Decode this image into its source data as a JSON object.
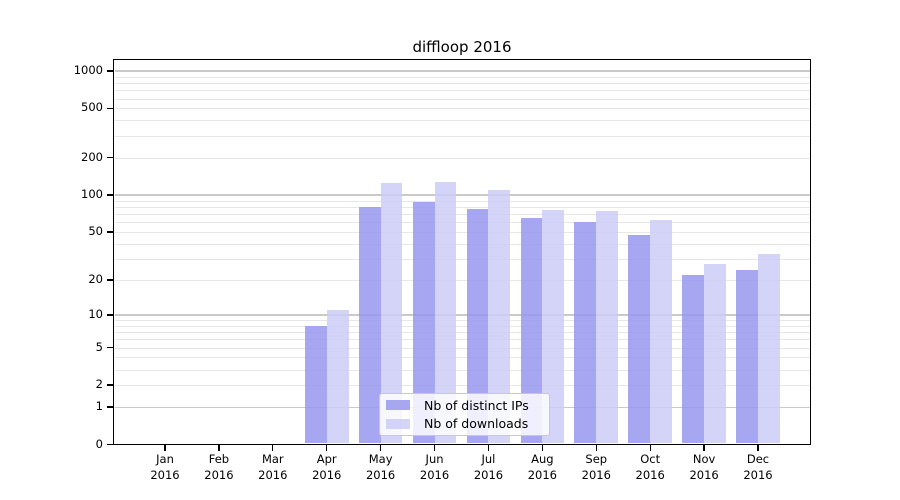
{
  "chart_data": {
    "type": "bar",
    "title": "diffloop 2016",
    "x_tick_year": "2016",
    "categories": [
      "Jan",
      "Feb",
      "Mar",
      "Apr",
      "May",
      "Jun",
      "Jul",
      "Aug",
      "Sep",
      "Oct",
      "Nov",
      "Dec"
    ],
    "series": [
      {
        "name": "Nb of distinct IPs",
        "color": "#9898ee",
        "values": [
          0,
          0,
          0,
          8,
          80,
          88,
          77,
          65,
          60,
          47,
          22,
          24
        ]
      },
      {
        "name": "Nb of downloads",
        "color": "#ccccf8",
        "values": [
          0,
          0,
          0,
          11,
          125,
          128,
          110,
          75,
          74,
          63,
          27,
          33
        ]
      }
    ],
    "y_scale": "log1p",
    "y_ticks": [
      0,
      1,
      2,
      5,
      10,
      20,
      50,
      100,
      200,
      500,
      1000
    ],
    "ylim": [
      0,
      1250
    ],
    "xlabel": "",
    "ylabel": "",
    "grid": "horizontal",
    "legend_position": "lower-center",
    "axis_color": "#000000",
    "major_grid_color": "#c9c9c9",
    "minor_grid_color": "#e7e7e7",
    "background": "#ffffff"
  }
}
